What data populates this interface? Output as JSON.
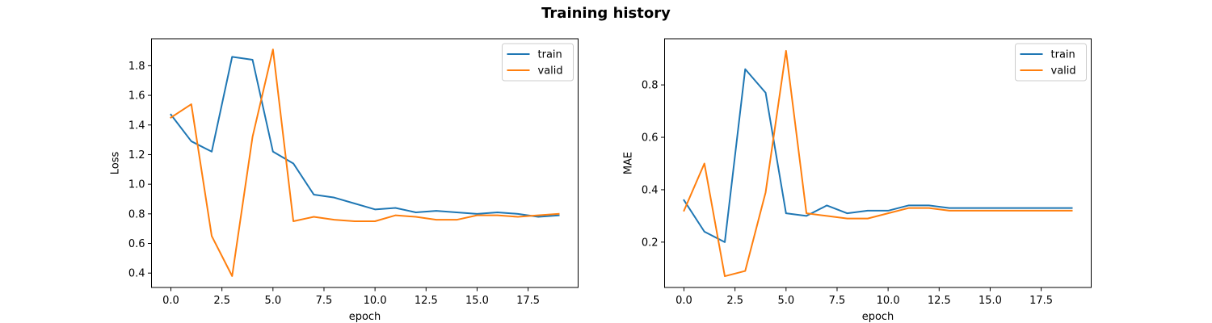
{
  "figure": {
    "title": "Training history"
  },
  "chart_data": [
    {
      "type": "line",
      "title": "",
      "xlabel": "epoch",
      "ylabel": "Loss",
      "xlim": [
        -0.95,
        19.95
      ],
      "ylim": [
        0.303,
        1.982
      ],
      "x": [
        0,
        1,
        2,
        3,
        4,
        5,
        6,
        7,
        8,
        9,
        10,
        11,
        12,
        13,
        14,
        15,
        16,
        17,
        18,
        19
      ],
      "xticks": [
        0.0,
        2.5,
        5.0,
        7.5,
        10.0,
        12.5,
        15.0,
        17.5
      ],
      "xtick_labels": [
        "0.0",
        "2.5",
        "5.0",
        "7.5",
        "10.0",
        "12.5",
        "15.0",
        "17.5"
      ],
      "yticks": [
        0.4,
        0.6,
        0.8,
        1.0,
        1.2,
        1.4,
        1.6,
        1.8
      ],
      "ytick_labels": [
        "0.4",
        "0.6",
        "0.8",
        "1.0",
        "1.2",
        "1.4",
        "1.6",
        "1.8"
      ],
      "legend_position": "top-right",
      "grid": false,
      "series": [
        {
          "name": "train",
          "color": "#1f77b4",
          "values": [
            1.47,
            1.29,
            1.22,
            1.86,
            1.84,
            1.22,
            1.14,
            0.93,
            0.91,
            0.87,
            0.83,
            0.84,
            0.81,
            0.82,
            0.81,
            0.8,
            0.81,
            0.8,
            0.78,
            0.79
          ]
        },
        {
          "name": "valid",
          "color": "#ff7f0e",
          "values": [
            1.45,
            1.54,
            0.65,
            0.38,
            1.32,
            1.91,
            0.75,
            0.78,
            0.76,
            0.75,
            0.75,
            0.79,
            0.78,
            0.76,
            0.76,
            0.79,
            0.79,
            0.78,
            0.79,
            0.8
          ]
        }
      ]
    },
    {
      "type": "line",
      "title": "",
      "xlabel": "epoch",
      "ylabel": "MAE",
      "xlim": [
        -0.95,
        19.95
      ],
      "ylim": [
        0.027,
        0.976
      ],
      "x": [
        0,
        1,
        2,
        3,
        4,
        5,
        6,
        7,
        8,
        9,
        10,
        11,
        12,
        13,
        14,
        15,
        16,
        17,
        18,
        19
      ],
      "xticks": [
        0.0,
        2.5,
        5.0,
        7.5,
        10.0,
        12.5,
        15.0,
        17.5
      ],
      "xtick_labels": [
        "0.0",
        "2.5",
        "5.0",
        "7.5",
        "10.0",
        "12.5",
        "15.0",
        "17.5"
      ],
      "yticks": [
        0.2,
        0.4,
        0.6,
        0.8
      ],
      "ytick_labels": [
        "0.2",
        "0.4",
        "0.6",
        "0.8"
      ],
      "legend_position": "top-right",
      "grid": false,
      "series": [
        {
          "name": "train",
          "color": "#1f77b4",
          "values": [
            0.36,
            0.24,
            0.2,
            0.86,
            0.77,
            0.31,
            0.3,
            0.34,
            0.31,
            0.32,
            0.32,
            0.34,
            0.34,
            0.33,
            0.33,
            0.33,
            0.33,
            0.33,
            0.33,
            0.33
          ]
        },
        {
          "name": "valid",
          "color": "#ff7f0e",
          "values": [
            0.32,
            0.5,
            0.07,
            0.09,
            0.39,
            0.93,
            0.31,
            0.3,
            0.29,
            0.29,
            0.31,
            0.33,
            0.33,
            0.32,
            0.32,
            0.32,
            0.32,
            0.32,
            0.32,
            0.32
          ]
        }
      ]
    }
  ]
}
